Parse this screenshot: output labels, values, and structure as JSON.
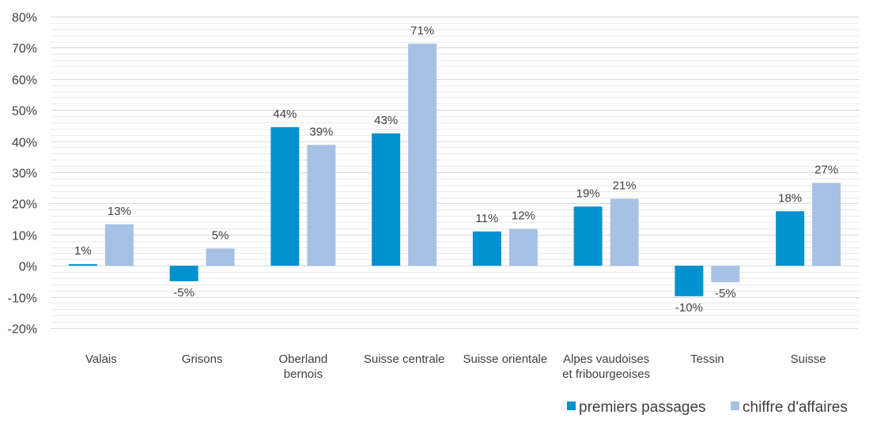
{
  "chart_data": {
    "type": "bar",
    "categories": [
      [
        "Valais"
      ],
      [
        "Grisons"
      ],
      [
        "Oberland",
        "bernois"
      ],
      [
        "Suisse centrale"
      ],
      [
        "Suisse orientale"
      ],
      [
        "Alpes vaudoises",
        "et fribourgeoises"
      ],
      [
        "Tessin"
      ],
      [
        "Suisse"
      ]
    ],
    "series": [
      {
        "name": "premiers passages",
        "color": "#0091D0",
        "values": [
          0.5,
          -5,
          44.5,
          42.5,
          11,
          19,
          -9.8,
          17.5
        ],
        "labels": [
          "1%",
          "-5%",
          "44%",
          "43%",
          "11%",
          "19%",
          "-10%",
          "18%"
        ]
      },
      {
        "name": "chiffre d'affaires",
        "color": "#A6C1E4",
        "values": [
          13.3,
          5.5,
          38.8,
          71.3,
          11.8,
          21.5,
          -5.3,
          26.6
        ],
        "labels": [
          "13%",
          "5%",
          "39%",
          "71%",
          "12%",
          "21%",
          "-5%",
          "27%"
        ]
      }
    ],
    "ylim": [
      -20,
      80
    ],
    "yticks": [
      -20,
      -10,
      0,
      10,
      20,
      30,
      40,
      50,
      60,
      70,
      80
    ],
    "ytick_labels": [
      "-20%",
      "-10%",
      "0%",
      "10%",
      "20%",
      "30%",
      "40%",
      "50%",
      "60%",
      "70%",
      "80%"
    ],
    "minor_gridlines": true,
    "gridline_color": "#D9D9D9",
    "legend_position": "bottom-right"
  }
}
